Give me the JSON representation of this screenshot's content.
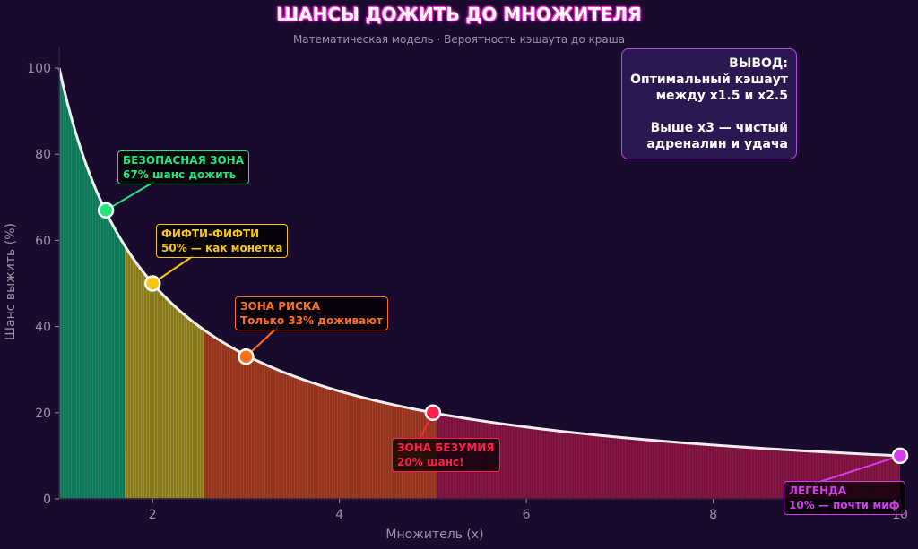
{
  "title": "ШАНСЫ ДОЖИТЬ ДО МНОЖИТЕЛЯ",
  "subtitle": "Математическая модель · Вероятность кэшаута до краша",
  "conclusion": {
    "lines": [
      "ВЫВОД:",
      "Оптимальный кэшаут",
      "между x1.5 и x2.5",
      "",
      "Выше x3 — чистый",
      "адреналин и удача"
    ],
    "border_color": "#b44ee0",
    "background": "#2c1850"
  },
  "chart_data": {
    "type": "area",
    "title": "ШАНСЫ ДОЖИТЬ ДО МНОЖИТЕЛЯ",
    "xlabel": "Множитель (x)",
    "ylabel": "Шанс выжить (%)",
    "xlim": [
      1,
      10
    ],
    "ylim": [
      0,
      100
    ],
    "xticks": [
      2,
      4,
      6,
      8,
      10
    ],
    "yticks": [
      0,
      20,
      40,
      60,
      80,
      100
    ],
    "grid": false,
    "curve": {
      "formula": "y = 100 / x",
      "x_range": [
        1,
        10
      ],
      "color": "#eeeeee"
    },
    "zones": [
      {
        "x_range": [
          1,
          1.7
        ],
        "color": "#10a36a"
      },
      {
        "x_range": [
          1.7,
          2.55
        ],
        "color": "#b8a81f"
      },
      {
        "x_range": [
          2.55,
          5.05
        ],
        "color": "#c2461c"
      },
      {
        "x_range": [
          5.05,
          10
        ],
        "color": "#a31848"
      }
    ],
    "points": [
      {
        "x": 1.5,
        "y": 67,
        "color": "#1de87a",
        "title": "БЕЗОПАСНАЯ ЗОНА",
        "text": "67% шанс дожить"
      },
      {
        "x": 2,
        "y": 50,
        "color": "#f5c518",
        "title": "ФИФТИ-ФИФТИ",
        "text": "50% — как монетка"
      },
      {
        "x": 3,
        "y": 33,
        "color": "#ff6f1a",
        "title": "ЗОНА РИСКА",
        "text": "Только 33% доживают"
      },
      {
        "x": 5,
        "y": 20,
        "color": "#ff1f4d",
        "title": "ЗОНА БЕЗУМИЯ",
        "text": "20% шанс!"
      },
      {
        "x": 10,
        "y": 10,
        "color": "#d23ee8",
        "title": "ЛЕГЕНДА",
        "text": "10% — почти миф"
      }
    ]
  }
}
